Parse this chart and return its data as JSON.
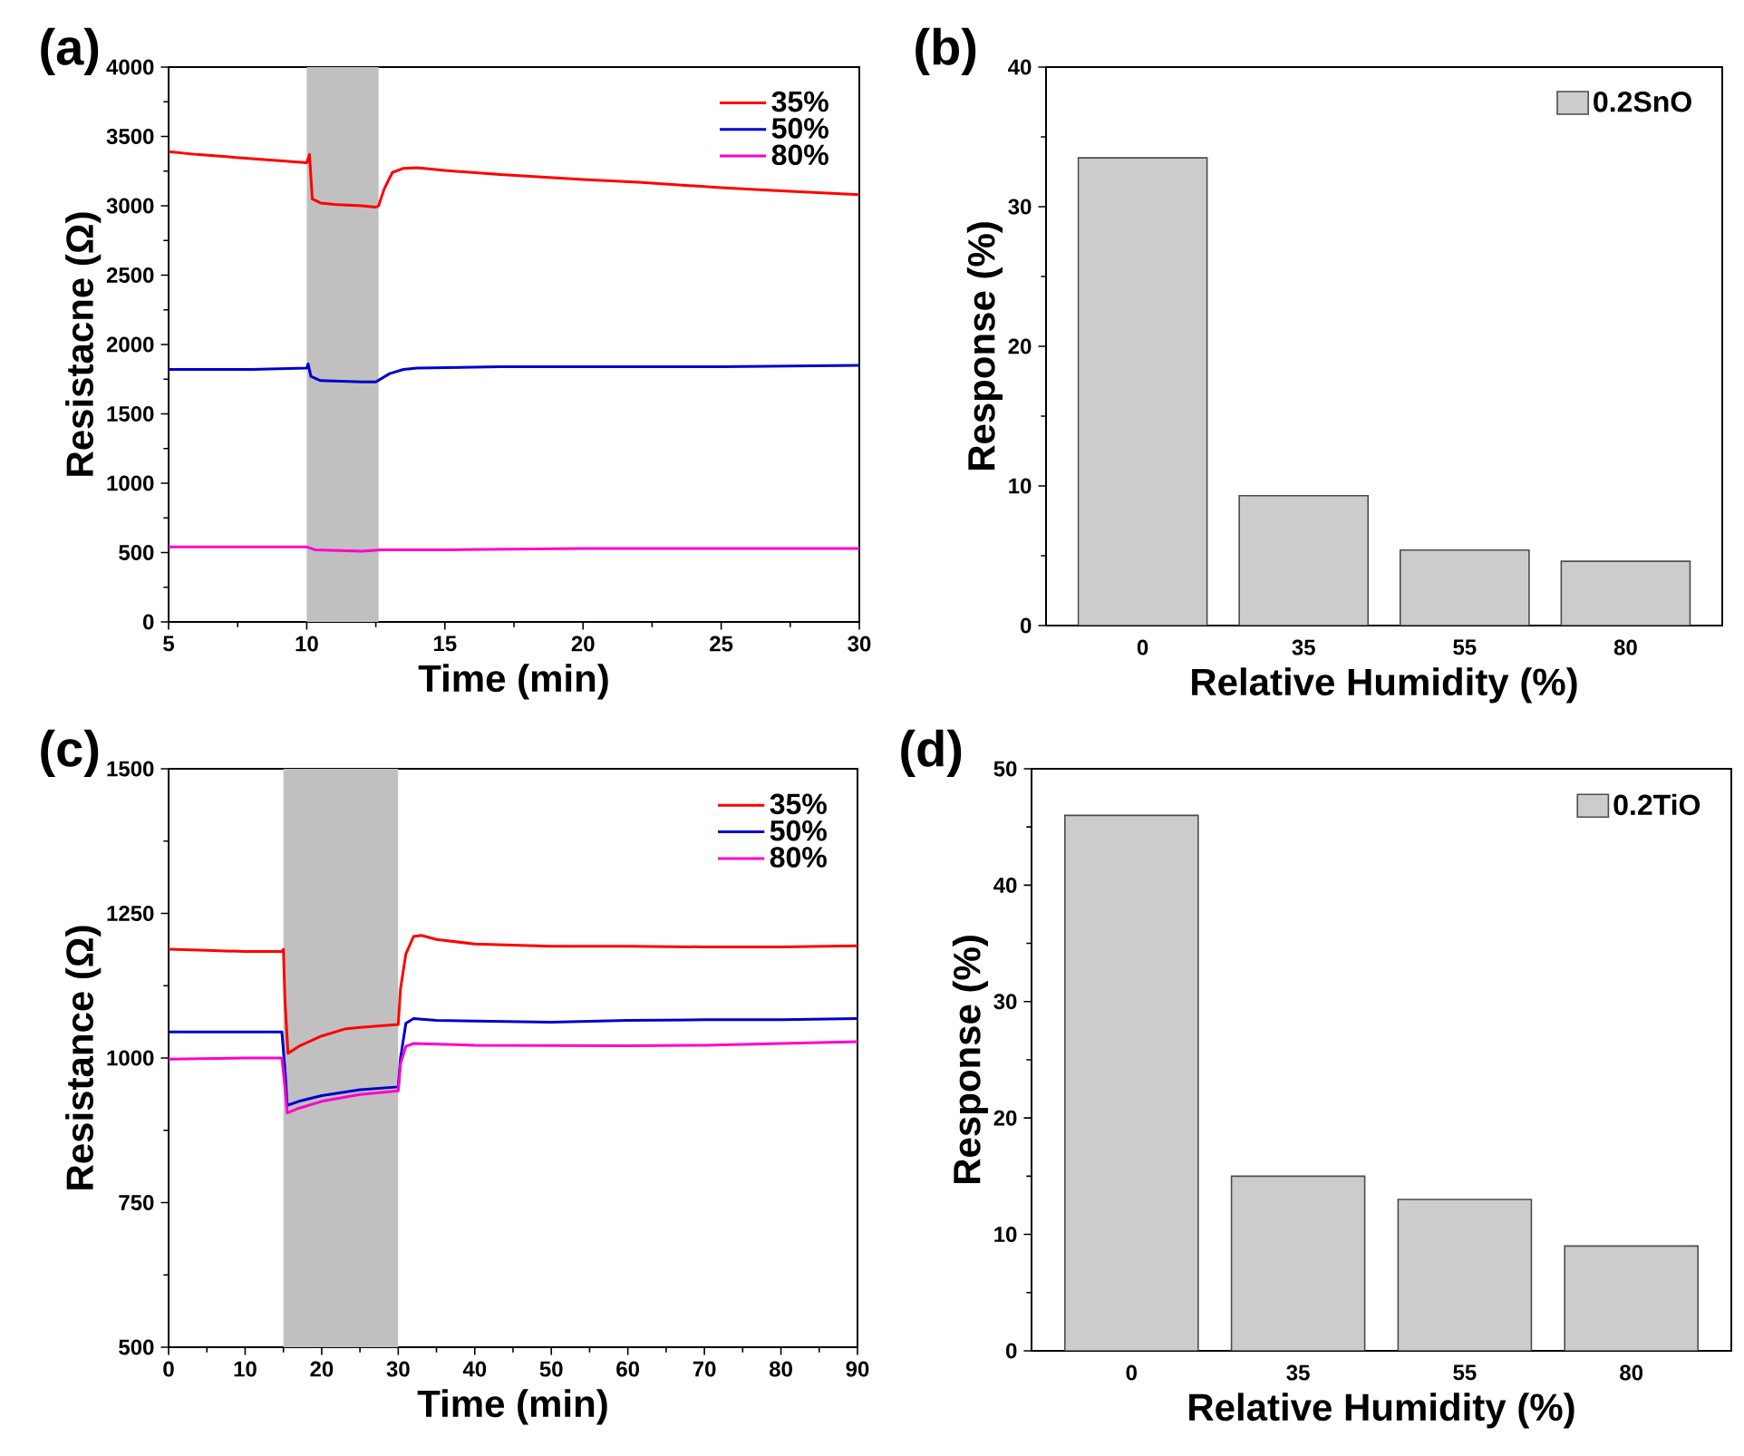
{
  "chart_data": [
    {
      "type": "line",
      "title": "(a)",
      "xlabel": "Time (min)",
      "ylabel": "Resistacne (Ω)",
      "xlim": [
        5,
        30
      ],
      "ylim": [
        0,
        4000
      ],
      "xticks": [
        5,
        10,
        15,
        20,
        25,
        30
      ],
      "yticks": [
        0,
        500,
        1000,
        1500,
        2000,
        2500,
        3000,
        3500,
        4000
      ],
      "legend": "top right",
      "bands": [
        {
          "axis": "x",
          "from": 10,
          "to": 12.6,
          "color": "#c0c0c0"
        }
      ],
      "series": [
        {
          "name": "35%",
          "color": "#ff0000",
          "x": [
            5,
            6,
            8,
            10,
            10.1,
            10.2,
            10.5,
            11,
            12,
            12.5,
            12.6,
            12.8,
            13.1,
            13.5,
            14,
            15,
            17,
            20,
            22,
            25,
            27,
            30
          ],
          "values": [
            3390,
            3370,
            3340,
            3310,
            3370,
            3050,
            3020,
            3010,
            3000,
            2990,
            3000,
            3120,
            3240,
            3270,
            3275,
            3255,
            3225,
            3190,
            3170,
            3130,
            3110,
            3080
          ]
        },
        {
          "name": "50%",
          "color": "#0000cc",
          "x": [
            5,
            8,
            10,
            10.05,
            10.15,
            10.5,
            12,
            12.5,
            13,
            13.5,
            14,
            17,
            20,
            25,
            30
          ],
          "values": [
            1820,
            1820,
            1830,
            1860,
            1770,
            1740,
            1730,
            1730,
            1790,
            1820,
            1830,
            1840,
            1840,
            1840,
            1850
          ]
        },
        {
          "name": "80%",
          "color": "#ff00cc",
          "x": [
            5,
            8,
            10,
            10.3,
            12,
            12.7,
            15,
            20,
            25,
            30
          ],
          "values": [
            540,
            540,
            540,
            520,
            510,
            520,
            520,
            530,
            530,
            530
          ]
        }
      ]
    },
    {
      "type": "bar",
      "title": "(b)",
      "xlabel": "Relative Humidity (%)",
      "ylabel": "Response (%)",
      "categories": [
        "0",
        "35",
        "55",
        "80"
      ],
      "ylim": [
        0,
        40
      ],
      "yticks": [
        0,
        10,
        20,
        30,
        40
      ],
      "legend": "top right",
      "series": [
        {
          "name": "0.2SnO",
          "color": "#cccccc",
          "values": [
            33.5,
            9.3,
            5.4,
            4.6
          ]
        }
      ]
    },
    {
      "type": "line",
      "title": "(c)",
      "xlabel": "Time (min)",
      "ylabel": "Resistance (Ω)",
      "xlim": [
        0,
        90
      ],
      "ylim": [
        500,
        1500
      ],
      "xticks": [
        0,
        10,
        20,
        30,
        40,
        50,
        60,
        70,
        80,
        90
      ],
      "yticks": [
        500,
        750,
        1000,
        1250,
        1500
      ],
      "legend": "top right",
      "bands": [
        {
          "axis": "x",
          "from": 15,
          "to": 30,
          "color": "#c0c0c0"
        }
      ],
      "series": [
        {
          "name": "35%",
          "color": "#ff0000",
          "x": [
            0,
            5,
            10,
            14.8,
            15,
            15.2,
            15.6,
            17,
            20,
            23,
            25,
            30,
            30.3,
            31,
            32,
            33,
            35,
            40,
            50,
            60,
            70,
            80,
            90
          ],
          "values": [
            1188,
            1186,
            1184,
            1184,
            1188,
            1100,
            1008,
            1020,
            1038,
            1050,
            1053,
            1058,
            1120,
            1180,
            1210,
            1212,
            1205,
            1197,
            1193,
            1193,
            1192,
            1192,
            1194
          ]
        },
        {
          "name": "50%",
          "color": "#0000cc",
          "x": [
            0,
            10,
            14.8,
            15.2,
            15.5,
            17,
            20,
            25,
            30,
            30.3,
            31,
            32,
            35,
            50,
            60,
            70,
            80,
            90
          ],
          "values": [
            1045,
            1045,
            1045,
            980,
            918,
            925,
            935,
            945,
            950,
            1000,
            1060,
            1068,
            1065,
            1062,
            1065,
            1066,
            1066,
            1068
          ]
        },
        {
          "name": "80%",
          "color": "#ff00cc",
          "x": [
            0,
            10,
            14.8,
            15.2,
            15.5,
            17,
            20,
            25,
            30,
            30.3,
            31,
            32,
            40,
            60,
            70,
            80,
            90
          ],
          "values": [
            998,
            1000,
            1000,
            950,
            905,
            913,
            925,
            937,
            943,
            990,
            1020,
            1025,
            1022,
            1021,
            1022,
            1025,
            1028
          ]
        }
      ]
    },
    {
      "type": "bar",
      "title": "(d)",
      "xlabel": "Relative Humidity (%)",
      "ylabel": "Response (%)",
      "categories": [
        "0",
        "35",
        "55",
        "80"
      ],
      "ylim": [
        0,
        50
      ],
      "yticks": [
        0,
        10,
        20,
        30,
        40,
        50
      ],
      "legend": "top right",
      "series": [
        {
          "name": "0.2TiO",
          "color": "#cccccc",
          "values": [
            46,
            15,
            13,
            9
          ]
        }
      ]
    }
  ]
}
